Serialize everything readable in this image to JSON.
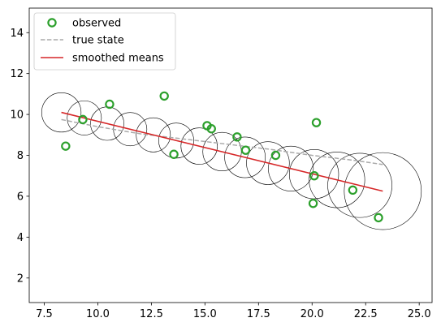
{
  "chart_data": {
    "type": "scatter",
    "xlim": [
      6.8,
      25.6
    ],
    "ylim": [
      0.8,
      15.2
    ],
    "xticks": [
      "7.5",
      "10.0",
      "12.5",
      "15.0",
      "17.5",
      "20.0",
      "22.5",
      "25.0"
    ],
    "xtick_values": [
      7.5,
      10.0,
      12.5,
      15.0,
      17.5,
      20.0,
      22.5,
      25.0
    ],
    "yticks": [
      "2",
      "4",
      "6",
      "8",
      "10",
      "12",
      "14"
    ],
    "ytick_values": [
      2,
      4,
      6,
      8,
      10,
      12,
      14
    ],
    "grid": false,
    "legend_position": "upper-left",
    "legend": [
      {
        "label": "observed",
        "marker": "hollow-circle",
        "color": "#2ca02c"
      },
      {
        "label": "true state",
        "linestyle": "dashed",
        "color": "#aaaaaa"
      },
      {
        "label": "smoothed means",
        "linestyle": "solid",
        "color": "#d62728"
      }
    ],
    "series": [
      {
        "name": "observed",
        "color": "#2ca02c",
        "x": [
          8.5,
          9.3,
          10.55,
          13.1,
          13.55,
          15.1,
          15.3,
          16.5,
          16.9,
          18.3,
          20.05,
          20.1,
          20.2,
          21.9,
          23.1
        ],
        "y": [
          8.45,
          9.75,
          10.5,
          10.9,
          8.05,
          9.45,
          9.3,
          8.9,
          8.25,
          8.0,
          5.65,
          7.0,
          9.6,
          6.3,
          4.95
        ]
      },
      {
        "name": "true state",
        "color": "#aaaaaa",
        "x": [
          8.3,
          10.0,
          12.0,
          14.0,
          16.0,
          18.0,
          20.0,
          22.0,
          23.3
        ],
        "y": [
          9.75,
          9.4,
          9.05,
          8.8,
          8.55,
          8.3,
          8.0,
          7.75,
          7.55
        ]
      },
      {
        "name": "smoothed means",
        "color": "#d62728",
        "x": [
          8.3,
          23.3
        ],
        "y": [
          10.1,
          6.25
        ]
      }
    ],
    "uncertainty_circles": {
      "color": "#000000",
      "centers_x": [
        8.3,
        9.37,
        10.44,
        11.51,
        12.59,
        13.66,
        14.73,
        15.8,
        16.87,
        17.94,
        19.01,
        20.09,
        21.16,
        22.23,
        23.3
      ],
      "centers_y": [
        10.1,
        9.83,
        9.55,
        9.28,
        9.0,
        8.72,
        8.45,
        8.18,
        7.9,
        7.62,
        7.35,
        7.08,
        6.8,
        6.53,
        6.25
      ],
      "radius_x_units": [
        0.92,
        0.8,
        0.78,
        0.78,
        0.8,
        0.82,
        0.85,
        0.9,
        0.95,
        1.0,
        1.05,
        1.15,
        1.3,
        1.5,
        1.8
      ]
    }
  }
}
